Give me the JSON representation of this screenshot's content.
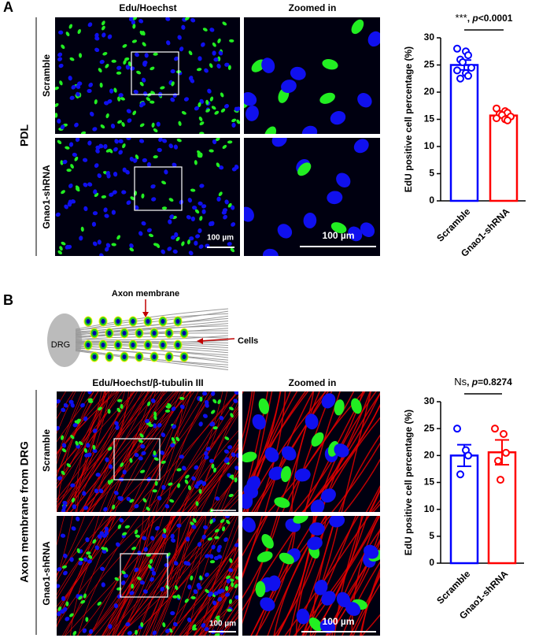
{
  "panels": [
    {
      "label": "A",
      "condition": "PDL",
      "image_title": "Edu/Hoechst",
      "zoom_title": "Zoomed in",
      "rows": [
        "Scramble",
        "Gnao1-shRNA"
      ],
      "scale_bars": [
        "100 µm",
        "100 µm"
      ]
    },
    {
      "label": "B",
      "condition": "Axon membrane from DRG",
      "image_title": "Edu/Hoechst/β-tubulin III",
      "zoom_title": "Zoomed in",
      "rows": [
        "Scramble",
        "Gnao1-shRNA"
      ],
      "scale_bars": [
        "100 µm",
        "100 µm"
      ],
      "diagram": {
        "axon": "Axon membrane",
        "cells": "Cells",
        "drg": "DRG"
      }
    }
  ],
  "chart_data": [
    {
      "type": "bar",
      "ylabel": "EdU positive cell percentage (%)",
      "categories": [
        "Scramble",
        "Gnao1-shRNA"
      ],
      "values": [
        25,
        15.7
      ],
      "errors": [
        0.9,
        0.35
      ],
      "colors": [
        "#0000ff",
        "#ff0000"
      ],
      "points": [
        [
          28,
          27.5,
          26.8,
          26,
          25.5,
          24.5,
          24,
          23.5,
          23,
          22.5
        ],
        [
          17,
          16.5,
          16.2,
          16,
          15.8,
          15.5,
          15.2,
          15,
          14.8
        ]
      ],
      "annotation": [
        "***",
        ", ",
        "p",
        "<0.0001"
      ],
      "ylim": [
        0,
        30
      ],
      "yticks": [
        0,
        5,
        10,
        15,
        20,
        25,
        30
      ]
    },
    {
      "type": "bar",
      "ylabel": "EdU positive cell percentage (%)",
      "categories": [
        "Scramble",
        "Gnao1-shRNA"
      ],
      "values": [
        20,
        20.6
      ],
      "errors": [
        2,
        2.3
      ],
      "colors": [
        "#0000ff",
        "#ff0000"
      ],
      "points": [
        [
          25,
          21,
          20,
          16.5
        ],
        [
          25,
          24,
          20.5,
          19,
          15.5
        ]
      ],
      "annotation": [
        "Ns",
        ", ",
        "p",
        "=0.8274"
      ],
      "ylim": [
        0,
        30
      ],
      "yticks": [
        0,
        5,
        10,
        15,
        20,
        25,
        30
      ]
    }
  ]
}
